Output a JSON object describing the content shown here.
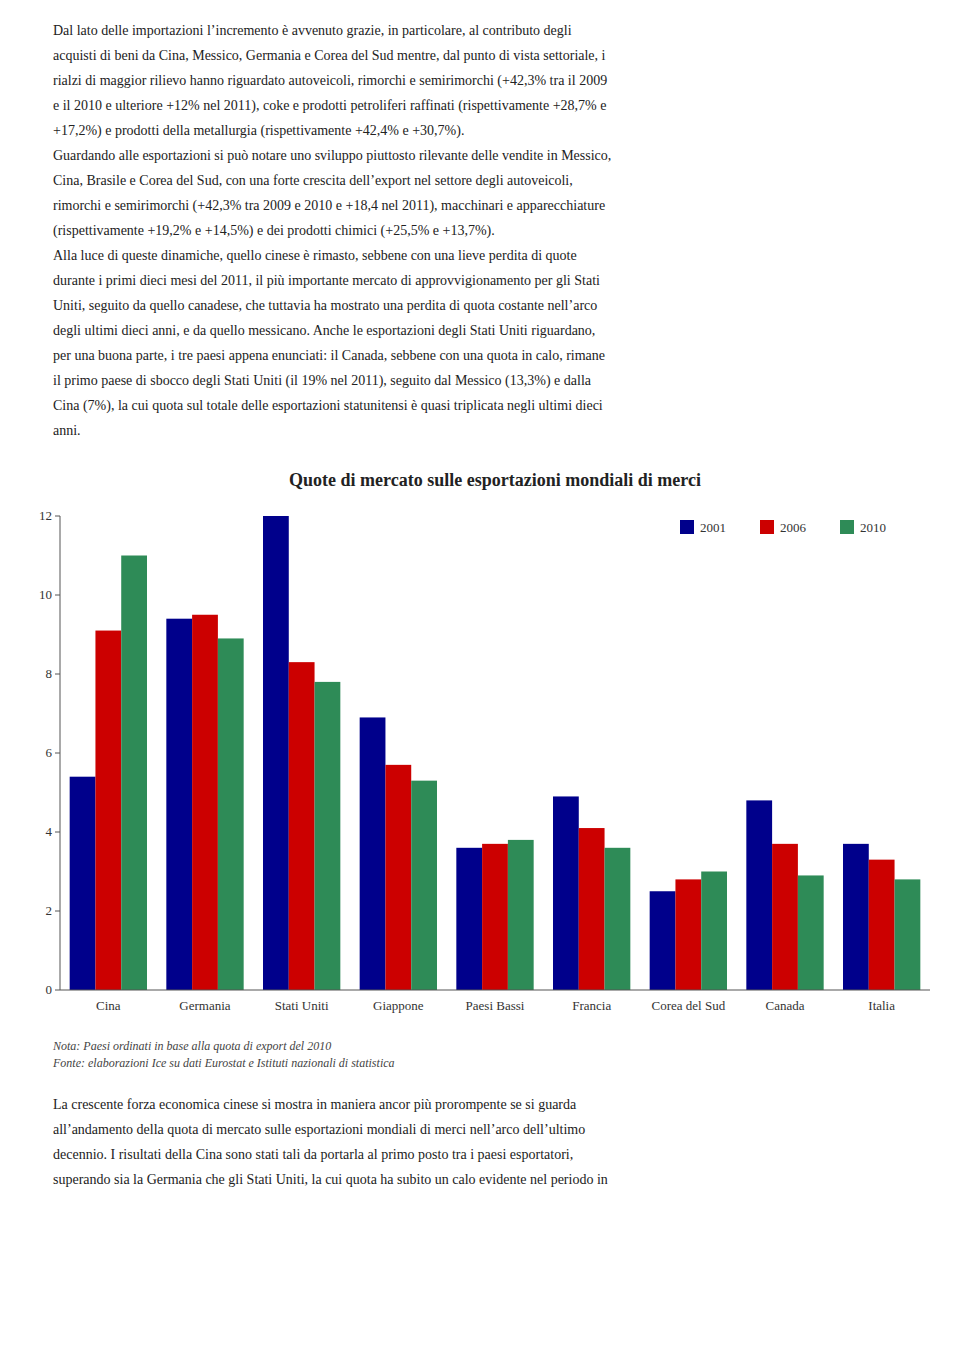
{
  "chart_data": {
    "type": "bar",
    "title": "Quote di mercato sulle esportazioni mondiali di merci",
    "categories": [
      "Cina",
      "Germania",
      "Stati Uniti",
      "Giappone",
      "Paesi Bassi",
      "Francia",
      "Corea del Sud",
      "Canada",
      "Italia"
    ],
    "series": [
      {
        "name": "2001",
        "color": "#00008B",
        "values": [
          5.4,
          9.4,
          12.0,
          6.9,
          3.6,
          4.9,
          2.5,
          4.8,
          3.7
        ]
      },
      {
        "name": "2006",
        "color": "#CC0000",
        "values": [
          9.1,
          9.5,
          8.3,
          5.7,
          3.7,
          4.1,
          2.8,
          3.7,
          3.3
        ]
      },
      {
        "name": "2010",
        "color": "#2E8B57",
        "values": [
          11.0,
          8.9,
          7.8,
          5.3,
          3.8,
          3.6,
          3.0,
          2.9,
          2.8
        ]
      }
    ],
    "ylim": [
      0,
      12
    ],
    "yticks": [
      0,
      2,
      4,
      6,
      8,
      10,
      12
    ],
    "grid": false,
    "legend": "upper right",
    "notes": [
      "Nota: Paesi ordinati in base alla quota di export del 2010",
      "Fonte: elaborazioni Ice su dati Eurostat e Istituti nazionali di statistica"
    ],
    "text_above": [
      "Dal lato delle importazioni l’incremento è avvenuto grazie, in particolare, al contributo degli",
      "acquisti di beni da Cina, Messico, Germania e Corea del Sud mentre, dal punto di vista settoriale, i",
      "rialzi di maggior rilievo hanno riguardato autoveicoli, rimorchi e semirimorchi (+42,3% tra il 2009",
      "e il 2010 e ulteriore +12% nel 2011), coke e prodotti petroliferi raffinati (rispettivamente +28,7% e",
      "+17,2%) e prodotti della metallurgia (rispettivamente +42,4% e +30,7%).",
      "Guardando alle esportazioni si può notare uno sviluppo piuttosto rilevante delle vendite in Messico,",
      "Cina, Brasile e Corea del Sud, con una forte crescita dell’export nel settore degli autoveicoli,",
      "rimorchi e semirimorchi (+42,3% tra 2009 e 2010 e +18,4 nel 2011), macchinari e apparecchiature",
      "(rispettivamente +19,2% e +14,5%) e dei prodotti chimici (+25,5% e +13,7%).",
      "Alla luce di queste dinamiche, quello cinese è rimasto, sebbene con una lieve perdita di quote",
      "durante i primi dieci mesi del 2011, il più importante mercato di approvvigionamento per gli Stati",
      "Uniti, seguito da quello canadese, che tuttavia ha mostrato una perdita di quota costante nell’arco",
      "degli ultimi dieci anni, e da quello messicano. Anche le esportazioni degli Stati Uniti riguardano,",
      "per una buona parte, i tre paesi appena enunciati: il Canada, sebbene con una quota in calo, rimane",
      "il primo paese di sbocco degli Stati Uniti (il 19% nel 2011), seguito dal Messico (13,3%) e dalla",
      "Cina (7%), la cui quota sul totale delle esportazioni statunitensi è quasi triplicata negli ultimi dieci",
      "anni."
    ],
    "text_below": [
      "La crescente forza economica cinese si mostra in maniera ancor più prorompente se si guarda",
      "all’andamento della quota di mercato sulle esportazioni mondiali di merci nell’arco dell’ultimo",
      "decennio. I risultati della Cina sono stati tali da portarla al primo posto tra i paesi esportatori,",
      "superando sia la Germania che gli Stati Uniti, la cui quota ha subito un calo evidente nel periodo in"
    ]
  }
}
